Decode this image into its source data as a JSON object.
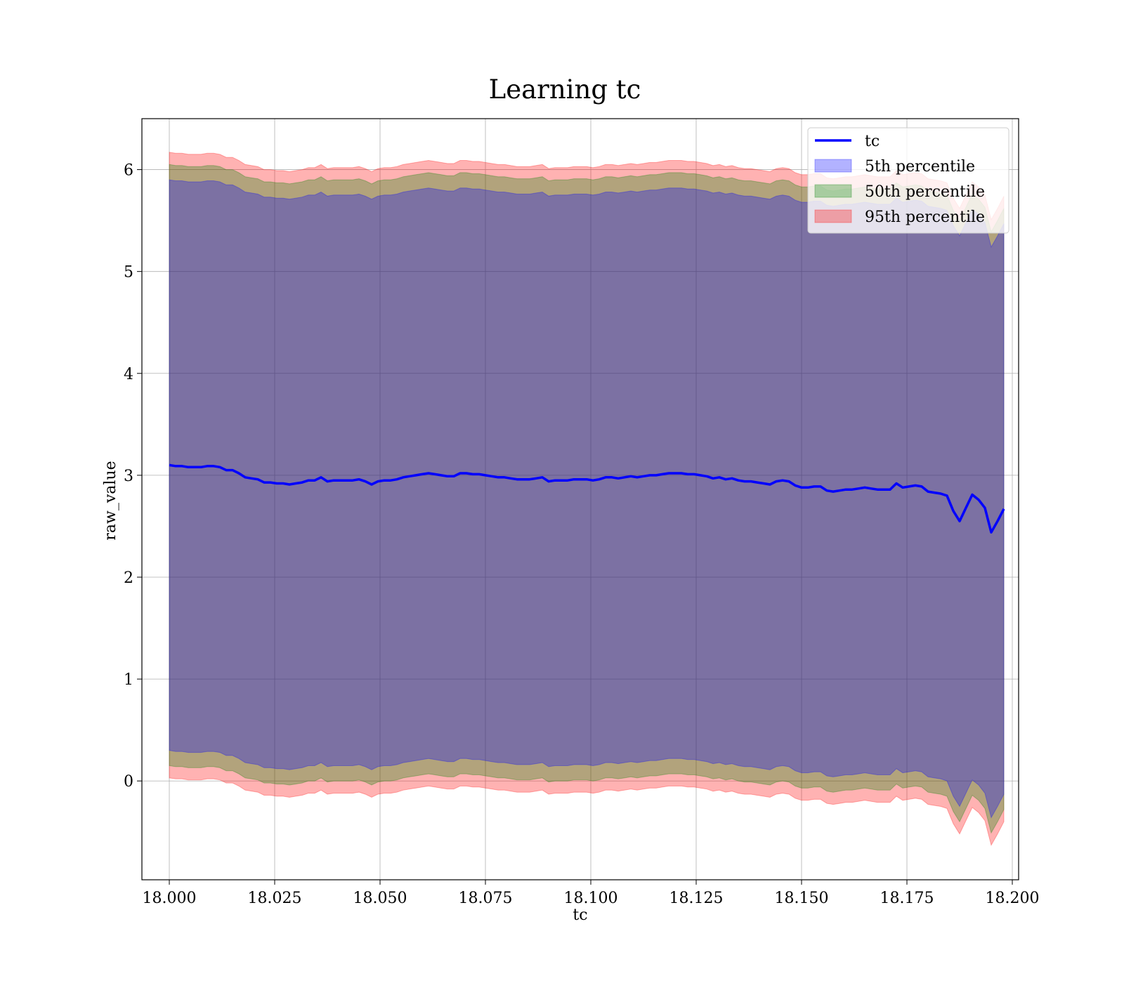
{
  "chart_data": {
    "type": "area",
    "title": "Learning tc",
    "xlabel": "tc",
    "ylabel": "raw_value",
    "xlim": [
      17.9935,
      18.2015
    ],
    "ylim": [
      -0.97,
      6.5
    ],
    "x_ticks": [
      "18.000",
      "18.025",
      "18.050",
      "18.075",
      "18.100",
      "18.125",
      "18.150",
      "18.175",
      "18.200"
    ],
    "y_ticks": [
      "0",
      "1",
      "2",
      "3",
      "4",
      "5",
      "6"
    ],
    "grid": true,
    "legend": {
      "placement": "top-right",
      "entries": [
        "tc",
        "5th percentile",
        "50th percentile",
        "95th percentile"
      ]
    },
    "colors": {
      "line": "#0000ff",
      "band_5": "#0000ff",
      "band_50": "#008000",
      "band_95": "#ff0000"
    },
    "x": [
      18.0,
      18.0015,
      18.003,
      18.0045,
      18.006,
      18.0075,
      18.009,
      18.0105,
      18.012,
      18.0135,
      18.015,
      18.0165,
      18.018,
      18.0195,
      18.021,
      18.0225,
      18.024,
      18.0255,
      18.027,
      18.0285,
      18.03,
      18.0315,
      18.033,
      18.0345,
      18.036,
      18.0375,
      18.039,
      18.0405,
      18.042,
      18.0435,
      18.045,
      18.0465,
      18.048,
      18.0495,
      18.051,
      18.0525,
      18.054,
      18.0555,
      18.057,
      18.0585,
      18.06,
      18.0615,
      18.063,
      18.0645,
      18.066,
      18.0675,
      18.069,
      18.0705,
      18.072,
      18.0735,
      18.075,
      18.0765,
      18.078,
      18.0795,
      18.081,
      18.0825,
      18.084,
      18.0855,
      18.087,
      18.0885,
      18.09,
      18.0915,
      18.093,
      18.0945,
      18.096,
      18.0975,
      18.099,
      18.1005,
      18.102,
      18.1035,
      18.105,
      18.1065,
      18.108,
      18.1095,
      18.111,
      18.1125,
      18.114,
      18.1155,
      18.117,
      18.1185,
      18.12,
      18.1215,
      18.123,
      18.1245,
      18.126,
      18.1275,
      18.129,
      18.1305,
      18.132,
      18.1335,
      18.135,
      18.1365,
      18.138,
      18.1395,
      18.141,
      18.1425,
      18.144,
      18.1455,
      18.147,
      18.1485,
      18.15,
      18.1515,
      18.153,
      18.1545,
      18.156,
      18.1575,
      18.159,
      18.1605,
      18.162,
      18.1635,
      18.165,
      18.1665,
      18.168,
      18.1695,
      18.171,
      18.1725,
      18.174,
      18.1755,
      18.177,
      18.1785,
      18.18,
      18.1815,
      18.183,
      18.1845,
      18.186,
      18.1875,
      18.189,
      18.1905,
      18.192,
      18.1935,
      18.195,
      18.1965,
      18.198
    ],
    "series": [
      {
        "name": "tc",
        "values": [
          3.1,
          3.09,
          3.09,
          3.08,
          3.08,
          3.08,
          3.09,
          3.09,
          3.08,
          3.05,
          3.05,
          3.02,
          2.98,
          2.97,
          2.96,
          2.93,
          2.93,
          2.92,
          2.92,
          2.91,
          2.92,
          2.93,
          2.95,
          2.95,
          2.98,
          2.94,
          2.95,
          2.95,
          2.95,
          2.95,
          2.96,
          2.94,
          2.91,
          2.94,
          2.95,
          2.95,
          2.96,
          2.98,
          2.99,
          3.0,
          3.01,
          3.02,
          3.01,
          3.0,
          2.99,
          2.99,
          3.02,
          3.02,
          3.01,
          3.01,
          3.0,
          2.99,
          2.98,
          2.98,
          2.97,
          2.96,
          2.96,
          2.96,
          2.97,
          2.98,
          2.94,
          2.95,
          2.95,
          2.95,
          2.96,
          2.96,
          2.96,
          2.95,
          2.96,
          2.98,
          2.98,
          2.97,
          2.98,
          2.99,
          2.98,
          2.99,
          3.0,
          3.0,
          3.01,
          3.02,
          3.02,
          3.02,
          3.01,
          3.01,
          3.0,
          2.99,
          2.97,
          2.98,
          2.96,
          2.97,
          2.95,
          2.94,
          2.94,
          2.93,
          2.92,
          2.91,
          2.94,
          2.95,
          2.94,
          2.9,
          2.88,
          2.88,
          2.89,
          2.89,
          2.85,
          2.84,
          2.85,
          2.86,
          2.86,
          2.87,
          2.88,
          2.87,
          2.86,
          2.86,
          2.86,
          2.92,
          2.88,
          2.89,
          2.9,
          2.89,
          2.84,
          2.83,
          2.82,
          2.8,
          2.65,
          2.55,
          2.68,
          2.81,
          2.76,
          2.68,
          2.44,
          2.55,
          2.67
        ]
      },
      {
        "name": "5th percentile",
        "upper": [
          5.9,
          5.89,
          5.89,
          5.88,
          5.88,
          5.88,
          5.89,
          5.89,
          5.88,
          5.85,
          5.85,
          5.82,
          5.78,
          5.77,
          5.76,
          5.73,
          5.73,
          5.72,
          5.72,
          5.71,
          5.72,
          5.73,
          5.75,
          5.75,
          5.78,
          5.74,
          5.75,
          5.75,
          5.75,
          5.75,
          5.76,
          5.74,
          5.71,
          5.74,
          5.75,
          5.75,
          5.76,
          5.78,
          5.79,
          5.8,
          5.81,
          5.82,
          5.81,
          5.8,
          5.79,
          5.79,
          5.82,
          5.82,
          5.81,
          5.81,
          5.8,
          5.79,
          5.78,
          5.78,
          5.77,
          5.76,
          5.76,
          5.76,
          5.77,
          5.78,
          5.74,
          5.75,
          5.75,
          5.75,
          5.76,
          5.76,
          5.76,
          5.75,
          5.76,
          5.78,
          5.78,
          5.77,
          5.78,
          5.79,
          5.78,
          5.79,
          5.8,
          5.8,
          5.81,
          5.82,
          5.82,
          5.82,
          5.81,
          5.81,
          5.8,
          5.79,
          5.77,
          5.78,
          5.76,
          5.77,
          5.75,
          5.74,
          5.74,
          5.73,
          5.72,
          5.71,
          5.74,
          5.75,
          5.74,
          5.7,
          5.68,
          5.68,
          5.69,
          5.69,
          5.65,
          5.64,
          5.65,
          5.66,
          5.66,
          5.67,
          5.68,
          5.67,
          5.66,
          5.66,
          5.66,
          5.72,
          5.68,
          5.69,
          5.7,
          5.69,
          5.64,
          5.63,
          5.62,
          5.6,
          5.45,
          5.35,
          5.48,
          5.61,
          5.56,
          5.48,
          5.24,
          5.35,
          5.47
        ],
        "lower": [
          0.3,
          0.29,
          0.29,
          0.28,
          0.28,
          0.28,
          0.29,
          0.29,
          0.28,
          0.25,
          0.25,
          0.22,
          0.18,
          0.17,
          0.16,
          0.13,
          0.13,
          0.12,
          0.12,
          0.11,
          0.12,
          0.13,
          0.15,
          0.15,
          0.18,
          0.14,
          0.15,
          0.15,
          0.15,
          0.15,
          0.16,
          0.14,
          0.11,
          0.14,
          0.15,
          0.15,
          0.16,
          0.18,
          0.19,
          0.2,
          0.21,
          0.22,
          0.21,
          0.2,
          0.19,
          0.19,
          0.22,
          0.22,
          0.21,
          0.21,
          0.2,
          0.19,
          0.18,
          0.18,
          0.17,
          0.16,
          0.16,
          0.16,
          0.17,
          0.18,
          0.14,
          0.15,
          0.15,
          0.15,
          0.16,
          0.16,
          0.16,
          0.15,
          0.16,
          0.18,
          0.18,
          0.17,
          0.18,
          0.19,
          0.18,
          0.19,
          0.2,
          0.2,
          0.21,
          0.22,
          0.22,
          0.22,
          0.21,
          0.21,
          0.2,
          0.19,
          0.17,
          0.18,
          0.16,
          0.17,
          0.15,
          0.14,
          0.14,
          0.13,
          0.12,
          0.11,
          0.14,
          0.15,
          0.14,
          0.1,
          0.08,
          0.08,
          0.09,
          0.09,
          0.05,
          0.04,
          0.05,
          0.06,
          0.06,
          0.07,
          0.08,
          0.07,
          0.06,
          0.06,
          0.06,
          0.12,
          0.08,
          0.09,
          0.1,
          0.09,
          0.04,
          0.03,
          0.02,
          0.0,
          -0.15,
          -0.25,
          -0.12,
          0.01,
          -0.04,
          -0.12,
          -0.36,
          -0.25,
          -0.13
        ]
      },
      {
        "name": "50th percentile",
        "upper": [
          6.05,
          6.04,
          6.04,
          6.03,
          6.03,
          6.03,
          6.04,
          6.04,
          6.03,
          6.0,
          6.0,
          5.97,
          5.93,
          5.92,
          5.91,
          5.88,
          5.88,
          5.87,
          5.87,
          5.86,
          5.87,
          5.88,
          5.9,
          5.9,
          5.93,
          5.89,
          5.9,
          5.9,
          5.9,
          5.9,
          5.91,
          5.89,
          5.86,
          5.89,
          5.9,
          5.9,
          5.91,
          5.93,
          5.94,
          5.95,
          5.96,
          5.97,
          5.96,
          5.95,
          5.94,
          5.94,
          5.97,
          5.97,
          5.96,
          5.96,
          5.95,
          5.94,
          5.93,
          5.93,
          5.92,
          5.91,
          5.91,
          5.91,
          5.92,
          5.93,
          5.89,
          5.9,
          5.9,
          5.9,
          5.91,
          5.91,
          5.91,
          5.9,
          5.91,
          5.93,
          5.93,
          5.92,
          5.93,
          5.94,
          5.93,
          5.94,
          5.95,
          5.95,
          5.96,
          5.97,
          5.97,
          5.97,
          5.96,
          5.96,
          5.95,
          5.94,
          5.92,
          5.93,
          5.91,
          5.92,
          5.9,
          5.89,
          5.89,
          5.88,
          5.87,
          5.86,
          5.89,
          5.9,
          5.89,
          5.85,
          5.83,
          5.83,
          5.84,
          5.84,
          5.8,
          5.79,
          5.8,
          5.81,
          5.81,
          5.82,
          5.83,
          5.82,
          5.81,
          5.81,
          5.81,
          5.87,
          5.83,
          5.84,
          5.85,
          5.84,
          5.79,
          5.78,
          5.77,
          5.75,
          5.6,
          5.5,
          5.63,
          5.76,
          5.71,
          5.63,
          5.39,
          5.5,
          5.62
        ],
        "lower": [
          0.15,
          0.14,
          0.14,
          0.13,
          0.13,
          0.13,
          0.14,
          0.14,
          0.13,
          0.1,
          0.1,
          0.07,
          0.03,
          0.02,
          0.01,
          -0.02,
          -0.02,
          -0.03,
          -0.03,
          -0.04,
          -0.03,
          -0.02,
          0.0,
          0.0,
          0.03,
          -0.01,
          0.0,
          0.0,
          0.0,
          0.0,
          0.01,
          -0.01,
          -0.04,
          -0.01,
          0.0,
          0.0,
          0.01,
          0.03,
          0.04,
          0.05,
          0.06,
          0.07,
          0.06,
          0.05,
          0.04,
          0.04,
          0.07,
          0.07,
          0.06,
          0.06,
          0.05,
          0.04,
          0.03,
          0.03,
          0.02,
          0.01,
          0.01,
          0.01,
          0.02,
          0.03,
          -0.01,
          0.0,
          0.0,
          0.0,
          0.01,
          0.01,
          0.01,
          0.0,
          0.01,
          0.03,
          0.03,
          0.02,
          0.03,
          0.04,
          0.03,
          0.04,
          0.05,
          0.05,
          0.06,
          0.07,
          0.07,
          0.07,
          0.06,
          0.06,
          0.05,
          0.04,
          0.02,
          0.03,
          0.01,
          0.02,
          0.0,
          -0.01,
          -0.01,
          -0.02,
          -0.03,
          -0.04,
          -0.01,
          0.0,
          -0.01,
          -0.05,
          -0.07,
          -0.07,
          -0.06,
          -0.06,
          -0.1,
          -0.11,
          -0.1,
          -0.09,
          -0.09,
          -0.08,
          -0.07,
          -0.08,
          -0.09,
          -0.09,
          -0.09,
          -0.03,
          -0.07,
          -0.06,
          -0.05,
          -0.06,
          -0.11,
          -0.12,
          -0.13,
          -0.15,
          -0.3,
          -0.4,
          -0.27,
          -0.14,
          -0.19,
          -0.27,
          -0.51,
          -0.4,
          -0.28
        ]
      },
      {
        "name": "95th percentile",
        "upper": [
          6.17,
          6.16,
          6.16,
          6.15,
          6.15,
          6.15,
          6.16,
          6.16,
          6.15,
          6.12,
          6.12,
          6.09,
          6.05,
          6.04,
          6.03,
          6.0,
          6.0,
          5.99,
          5.99,
          5.98,
          5.99,
          6.0,
          6.02,
          6.02,
          6.05,
          6.01,
          6.02,
          6.02,
          6.02,
          6.02,
          6.03,
          6.01,
          5.98,
          6.01,
          6.02,
          6.02,
          6.03,
          6.05,
          6.06,
          6.07,
          6.08,
          6.09,
          6.08,
          6.07,
          6.06,
          6.06,
          6.09,
          6.09,
          6.08,
          6.08,
          6.07,
          6.06,
          6.05,
          6.05,
          6.04,
          6.03,
          6.03,
          6.03,
          6.04,
          6.05,
          6.01,
          6.02,
          6.02,
          6.02,
          6.03,
          6.03,
          6.03,
          6.02,
          6.03,
          6.05,
          6.05,
          6.04,
          6.05,
          6.06,
          6.05,
          6.06,
          6.07,
          6.07,
          6.08,
          6.09,
          6.09,
          6.09,
          6.08,
          6.08,
          6.07,
          6.06,
          6.04,
          6.05,
          6.03,
          6.04,
          6.02,
          6.01,
          6.01,
          6.0,
          5.99,
          5.98,
          6.01,
          6.02,
          6.01,
          5.97,
          5.95,
          5.95,
          5.96,
          5.96,
          5.92,
          5.91,
          5.92,
          5.93,
          5.93,
          5.94,
          5.95,
          5.94,
          5.93,
          5.93,
          5.93,
          5.99,
          5.95,
          5.96,
          5.97,
          5.96,
          5.91,
          5.9,
          5.89,
          5.87,
          5.72,
          5.62,
          5.75,
          5.88,
          5.83,
          5.75,
          5.51,
          5.62,
          5.74
        ],
        "lower": [
          0.03,
          0.02,
          0.02,
          0.01,
          0.01,
          0.01,
          0.02,
          0.02,
          0.01,
          -0.02,
          -0.02,
          -0.05,
          -0.09,
          -0.1,
          -0.11,
          -0.14,
          -0.14,
          -0.15,
          -0.15,
          -0.16,
          -0.15,
          -0.14,
          -0.12,
          -0.12,
          -0.09,
          -0.13,
          -0.12,
          -0.12,
          -0.12,
          -0.12,
          -0.11,
          -0.13,
          -0.16,
          -0.13,
          -0.12,
          -0.12,
          -0.11,
          -0.09,
          -0.08,
          -0.07,
          -0.06,
          -0.05,
          -0.06,
          -0.07,
          -0.08,
          -0.08,
          -0.05,
          -0.05,
          -0.06,
          -0.06,
          -0.07,
          -0.08,
          -0.09,
          -0.09,
          -0.1,
          -0.11,
          -0.11,
          -0.11,
          -0.1,
          -0.09,
          -0.13,
          -0.12,
          -0.12,
          -0.12,
          -0.11,
          -0.11,
          -0.11,
          -0.12,
          -0.11,
          -0.09,
          -0.09,
          -0.1,
          -0.09,
          -0.08,
          -0.09,
          -0.08,
          -0.07,
          -0.07,
          -0.06,
          -0.05,
          -0.05,
          -0.05,
          -0.06,
          -0.06,
          -0.07,
          -0.08,
          -0.1,
          -0.09,
          -0.11,
          -0.1,
          -0.12,
          -0.13,
          -0.13,
          -0.14,
          -0.15,
          -0.16,
          -0.13,
          -0.12,
          -0.13,
          -0.17,
          -0.19,
          -0.19,
          -0.18,
          -0.18,
          -0.22,
          -0.23,
          -0.22,
          -0.21,
          -0.21,
          -0.2,
          -0.19,
          -0.2,
          -0.21,
          -0.21,
          -0.21,
          -0.15,
          -0.19,
          -0.18,
          -0.17,
          -0.18,
          -0.23,
          -0.24,
          -0.25,
          -0.27,
          -0.42,
          -0.52,
          -0.39,
          -0.26,
          -0.31,
          -0.39,
          -0.63,
          -0.52,
          -0.4
        ]
      }
    ]
  }
}
